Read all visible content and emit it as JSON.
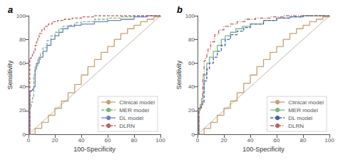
{
  "chart_data": [
    {
      "type": "step",
      "title": "a",
      "xlabel": "100-Specificity",
      "ylabel": "Sensitivity",
      "xlim": [
        0,
        100
      ],
      "ylim": [
        0,
        100
      ],
      "xticks": [
        0,
        20,
        40,
        60,
        80,
        100
      ],
      "yticks": [
        0,
        20,
        40,
        60,
        80,
        100
      ],
      "grid": false,
      "legend": "lower right",
      "diagonal": {
        "x": [
          0,
          100
        ],
        "y": [
          0,
          100
        ],
        "color": "#c0b8a8"
      },
      "series": [
        {
          "name": "Clinical model",
          "color": "#c8a070",
          "line_style": "solid",
          "x": [
            0,
            5,
            10,
            15,
            20,
            25,
            30,
            35,
            40,
            45,
            50,
            55,
            60,
            65,
            70,
            75,
            80,
            85,
            90,
            95,
            100
          ],
          "values": [
            0,
            5,
            10,
            16,
            22,
            28,
            35,
            42,
            50,
            57,
            63,
            69,
            74,
            80,
            85,
            89,
            92,
            95,
            97,
            99,
            100
          ]
        },
        {
          "name": "MER model",
          "color": "#7ab87a",
          "line_style": "dashed",
          "x": [
            0,
            1,
            2,
            3,
            4,
            5,
            7,
            9,
            11,
            14,
            17,
            20,
            23,
            26,
            30,
            35,
            40,
            50,
            60,
            70,
            80,
            90,
            100
          ],
          "values": [
            0,
            23,
            27,
            31,
            50,
            57,
            63,
            68,
            73,
            79,
            83,
            86,
            89,
            91,
            92,
            94,
            95,
            97,
            98,
            99,
            100,
            100,
            100
          ]
        },
        {
          "name": "DL model",
          "color": "#7080c0",
          "line_style": "solid",
          "x": [
            0,
            1,
            2,
            3,
            4,
            5,
            6,
            8,
            11,
            14,
            17,
            20,
            23,
            26,
            30,
            35,
            40,
            50,
            60,
            70,
            80,
            90,
            100
          ],
          "values": [
            0,
            36,
            37,
            38,
            40,
            55,
            60,
            65,
            70,
            75,
            80,
            83,
            86,
            89,
            91,
            92,
            93,
            95,
            96,
            97,
            99,
            100,
            100
          ]
        },
        {
          "name": "DLRN",
          "color": "#c06060",
          "line_style": "dashed",
          "x": [
            0,
            1,
            2,
            3,
            4,
            5,
            6,
            7,
            8,
            10,
            12,
            15,
            18,
            22,
            27,
            33,
            40,
            50,
            60,
            70,
            80,
            90,
            100
          ],
          "values": [
            0,
            64,
            66,
            68,
            70,
            75,
            78,
            81,
            85,
            88,
            91,
            93,
            95,
            96,
            97,
            98,
            99,
            100,
            100,
            100,
            100,
            100,
            100
          ]
        }
      ]
    },
    {
      "type": "step",
      "title": "b",
      "xlabel": "100-Specificity",
      "ylabel": "Sensitivity",
      "xlim": [
        0,
        100
      ],
      "ylim": [
        0,
        100
      ],
      "xticks": [
        0,
        20,
        40,
        60,
        80,
        100
      ],
      "yticks": [
        0,
        20,
        40,
        60,
        80,
        100
      ],
      "grid": false,
      "legend": "lower right",
      "diagonal": {
        "x": [
          0,
          100
        ],
        "y": [
          0,
          100
        ],
        "color": "#c0b8a8"
      },
      "series": [
        {
          "name": "Clinical model",
          "color": "#c8a070",
          "line_style": "solid",
          "x": [
            0,
            5,
            10,
            15,
            20,
            25,
            30,
            35,
            40,
            45,
            50,
            55,
            60,
            65,
            70,
            75,
            80,
            85,
            90,
            95,
            100
          ],
          "values": [
            0,
            5,
            10,
            16,
            22,
            28,
            35,
            43,
            50,
            57,
            63,
            69,
            74,
            80,
            85,
            89,
            92,
            95,
            97,
            99,
            100
          ]
        },
        {
          "name": "MER model",
          "color": "#7ab87a",
          "line_style": "solid",
          "x": [
            0,
            1,
            2,
            3,
            4,
            5,
            7,
            9,
            12,
            15,
            18,
            21,
            25,
            29,
            34,
            40,
            50,
            60,
            70,
            80,
            90,
            100
          ],
          "values": [
            0,
            20,
            25,
            30,
            35,
            50,
            60,
            65,
            70,
            75,
            80,
            83,
            86,
            89,
            91,
            93,
            96,
            98,
            99,
            100,
            100,
            100
          ]
        },
        {
          "name": "DL model",
          "color": "#4060b8",
          "line_style": "dashed",
          "x": [
            0,
            1,
            2,
            3,
            4,
            5,
            7,
            9,
            12,
            15,
            18,
            21,
            25,
            30,
            35,
            40,
            50,
            60,
            70,
            80,
            90,
            100
          ],
          "values": [
            0,
            22,
            23,
            25,
            27,
            45,
            55,
            60,
            65,
            70,
            75,
            80,
            84,
            87,
            90,
            93,
            96,
            98,
            99,
            100,
            100,
            100
          ]
        },
        {
          "name": "DLRN",
          "color": "#c06060",
          "line_style": "dashdot",
          "x": [
            0,
            1,
            2,
            3,
            4,
            5,
            6,
            7,
            8,
            10,
            13,
            16,
            20,
            25,
            30,
            36,
            44,
            55,
            65,
            75,
            85,
            93,
            100
          ],
          "values": [
            0,
            20,
            22,
            25,
            50,
            62,
            65,
            68,
            72,
            78,
            84,
            88,
            91,
            93,
            95,
            97,
            98,
            99,
            100,
            100,
            100,
            100,
            100
          ]
        }
      ]
    }
  ]
}
